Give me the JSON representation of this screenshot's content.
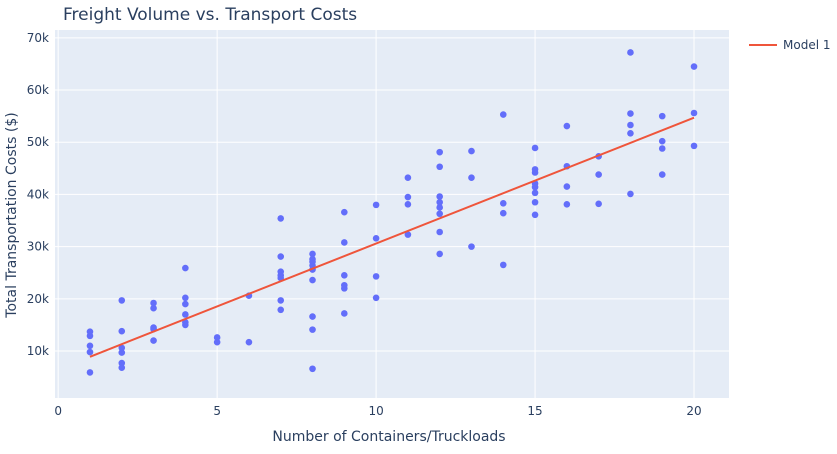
{
  "chart_data": {
    "type": "scatter",
    "title": "Freight Volume vs. Transport Costs",
    "xlabel": "Number of Containers/Truckloads",
    "ylabel": "Total Transportation Costs ($)",
    "xlim": [
      -0.1,
      21.1
    ],
    "ylim": [
      1000,
      71500
    ],
    "x_ticks": [
      0,
      5,
      10,
      15,
      20
    ],
    "x_tick_labels": [
      "0",
      "5",
      "10",
      "15",
      "20"
    ],
    "y_ticks": [
      10000,
      20000,
      30000,
      40000,
      50000,
      60000,
      70000
    ],
    "y_tick_labels": [
      "10k",
      "20k",
      "30k",
      "40k",
      "50k",
      "60k",
      "70k"
    ],
    "grid": true,
    "legend_position": "top-right",
    "colors": {
      "plot_bg": "#E5ECF6",
      "grid": "#FFFFFF",
      "points": "#636EFA",
      "line": "#EF553B",
      "text": "#2A3F5F"
    },
    "series": [
      {
        "kind": "markers",
        "points": [
          [
            1,
            5900
          ],
          [
            1,
            9800
          ],
          [
            1,
            11000
          ],
          [
            1,
            12900
          ],
          [
            1,
            13700
          ],
          [
            2,
            6800
          ],
          [
            2,
            7700
          ],
          [
            2,
            9700
          ],
          [
            2,
            10600
          ],
          [
            2,
            13800
          ],
          [
            2,
            19700
          ],
          [
            3,
            12000
          ],
          [
            3,
            14200
          ],
          [
            3,
            14500
          ],
          [
            3,
            18200
          ],
          [
            3,
            19200
          ],
          [
            4,
            15000
          ],
          [
            4,
            15500
          ],
          [
            4,
            17000
          ],
          [
            4,
            19000
          ],
          [
            4,
            20200
          ],
          [
            4,
            25900
          ],
          [
            5,
            11700
          ],
          [
            5,
            12600
          ],
          [
            6,
            11700
          ],
          [
            6,
            20600
          ],
          [
            7,
            17900
          ],
          [
            7,
            19700
          ],
          [
            7,
            24000
          ],
          [
            7,
            24500
          ],
          [
            7,
            25200
          ],
          [
            7,
            28100
          ],
          [
            7,
            35400
          ],
          [
            8,
            6600
          ],
          [
            8,
            14100
          ],
          [
            8,
            16600
          ],
          [
            8,
            23600
          ],
          [
            8,
            25600
          ],
          [
            8,
            26400
          ],
          [
            8,
            27100
          ],
          [
            8,
            27600
          ],
          [
            8,
            28600
          ],
          [
            9,
            17200
          ],
          [
            9,
            22000
          ],
          [
            9,
            22600
          ],
          [
            9,
            24500
          ],
          [
            9,
            30800
          ],
          [
            9,
            36600
          ],
          [
            10,
            20200
          ],
          [
            10,
            24300
          ],
          [
            10,
            31600
          ],
          [
            10,
            38000
          ],
          [
            11,
            32300
          ],
          [
            11,
            38100
          ],
          [
            11,
            39500
          ],
          [
            11,
            43200
          ],
          [
            12,
            28600
          ],
          [
            12,
            32800
          ],
          [
            12,
            36300
          ],
          [
            12,
            37500
          ],
          [
            12,
            38500
          ],
          [
            12,
            39600
          ],
          [
            12,
            45300
          ],
          [
            12,
            48100
          ],
          [
            13,
            30000
          ],
          [
            13,
            43200
          ],
          [
            13,
            48300
          ],
          [
            14,
            26500
          ],
          [
            14,
            36400
          ],
          [
            14,
            38300
          ],
          [
            14,
            55300
          ],
          [
            15,
            36100
          ],
          [
            15,
            38500
          ],
          [
            15,
            40300
          ],
          [
            15,
            41400
          ],
          [
            15,
            42100
          ],
          [
            15,
            44200
          ],
          [
            15,
            44800
          ],
          [
            15,
            48900
          ],
          [
            16,
            38100
          ],
          [
            16,
            41500
          ],
          [
            16,
            45400
          ],
          [
            16,
            53100
          ],
          [
            17,
            38200
          ],
          [
            17,
            43800
          ],
          [
            17,
            47300
          ],
          [
            18,
            40100
          ],
          [
            18,
            51700
          ],
          [
            18,
            53300
          ],
          [
            18,
            55500
          ],
          [
            18,
            67200
          ],
          [
            19,
            43800
          ],
          [
            19,
            48800
          ],
          [
            19,
            50200
          ],
          [
            19,
            55000
          ],
          [
            20,
            49300
          ],
          [
            20,
            55600
          ],
          [
            20,
            64500
          ]
        ]
      },
      {
        "kind": "line",
        "name": "Model 1",
        "points": [
          [
            1,
            8900
          ],
          [
            20,
            54700
          ]
        ]
      }
    ]
  }
}
